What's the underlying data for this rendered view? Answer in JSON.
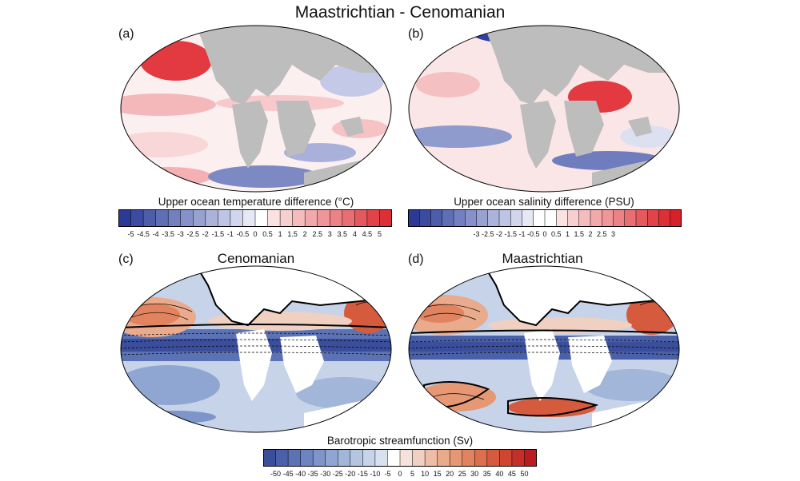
{
  "figure": {
    "title": "Maastrichtian - Cenomanian"
  },
  "panels": [
    {
      "label": "(a)",
      "title": ""
    },
    {
      "label": "(b)",
      "title": ""
    },
    {
      "label": "(c)",
      "title": "Cenomanian"
    },
    {
      "label": "(d)",
      "title": "Maastrichtian"
    }
  ],
  "colorbars": {
    "temperature": {
      "title": "Upper ocean temperature difference (°C)",
      "ticks": [
        "-5",
        "-4.5",
        "-4",
        "-3.5",
        "-3",
        "-2.5",
        "-2",
        "-1.5",
        "-1",
        "-0.5",
        "0",
        "0.5",
        "1",
        "1.5",
        "2",
        "2.5",
        "3",
        "3.5",
        "4",
        "4.5",
        "5"
      ],
      "colors": [
        "#2b3a95",
        "#3b4ba0",
        "#4d5daa",
        "#5f6fb5",
        "#7280bf",
        "#8591c8",
        "#98a2d1",
        "#abb3da",
        "#bec4e3",
        "#d2d6ec",
        "#e6e8f4",
        "#ffffff",
        "#fbe2e2",
        "#f8cfd0",
        "#f5bcbd",
        "#f2a9ab",
        "#ef9698",
        "#ec8285",
        "#e86e72",
        "#e4595e",
        "#e0444a",
        "#dc2f36"
      ]
    },
    "salinity": {
      "title": "Upper ocean salinity difference (PSU)",
      "ticks": [
        "-3",
        "-2.5",
        "-2",
        "-1.5",
        "-1",
        "-0.5",
        "0",
        "0.5",
        "1",
        "1.5",
        "2",
        "2.5",
        "3"
      ],
      "colors": [
        "#2b3a95",
        "#3b4ba0",
        "#4d5daa",
        "#5f6fb5",
        "#7280bf",
        "#8591c8",
        "#98a2d1",
        "#abb3da",
        "#bec4e3",
        "#d2d6ec",
        "#e6e8f4",
        "#ffffff",
        "#ffffff",
        "#fbe2e2",
        "#f8cfd0",
        "#f5bcbd",
        "#f2a9ab",
        "#ef9698",
        "#ec8285",
        "#e86e72",
        "#e4595e",
        "#e0444a",
        "#dc2f36",
        "#d82028"
      ]
    },
    "streamfunction": {
      "title": "Barotropic streamfunction (Sv)",
      "ticks": [
        "-50",
        "-45",
        "-40",
        "-35",
        "-30",
        "-25",
        "-20",
        "-15",
        "-10",
        "-5",
        "0",
        "5",
        "10",
        "15",
        "20",
        "25",
        "30",
        "35",
        "40",
        "45",
        "50"
      ],
      "colors": [
        "#3a4e9c",
        "#4a60a8",
        "#5b72b4",
        "#6c84bf",
        "#7e95c9",
        "#90a6d2",
        "#a2b6da",
        "#b4c5e2",
        "#c6d3e9",
        "#d8e1ef",
        "#ffffff",
        "#f3e3dc",
        "#f0d0c0",
        "#edbda5",
        "#eaaa8c",
        "#e69774",
        "#e2835f",
        "#dd6f4d",
        "#d65b3e",
        "#ce4632",
        "#c43028",
        "#b81d21"
      ]
    }
  }
}
